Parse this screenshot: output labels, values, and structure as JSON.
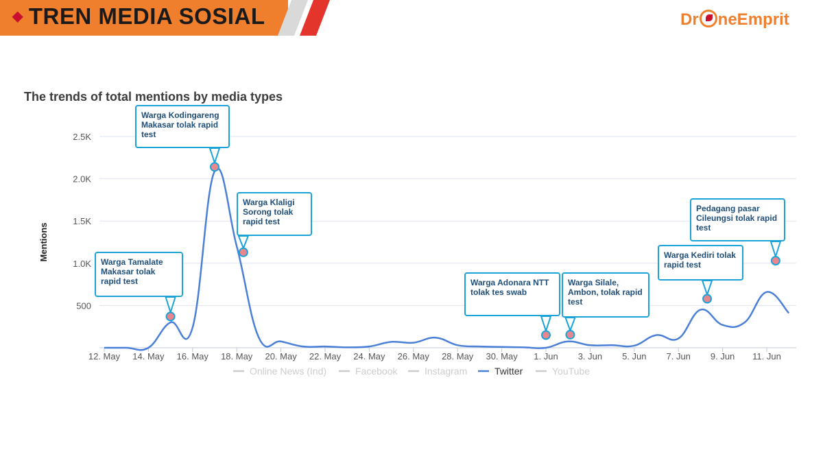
{
  "header": {
    "title": "TREN MEDIA SOSIAL"
  },
  "logo": {
    "part1": "Dr",
    "part2": "neEmprit"
  },
  "chart_data": {
    "type": "line",
    "title": "The trends of total mentions by media types",
    "ylabel": "Mentions",
    "ylim": [
      0,
      2500
    ],
    "yticks": [
      {
        "value": 500,
        "label": "500"
      },
      {
        "value": 1000,
        "label": "1.0K"
      },
      {
        "value": 1500,
        "label": "1.5K"
      },
      {
        "value": 2000,
        "label": "2.0K"
      },
      {
        "value": 2500,
        "label": "2.5K"
      }
    ],
    "xticks": [
      {
        "day": 0,
        "label": "12. May"
      },
      {
        "day": 2,
        "label": "14. May"
      },
      {
        "day": 4,
        "label": "16. May"
      },
      {
        "day": 6,
        "label": "18. May"
      },
      {
        "day": 8,
        "label": "20. May"
      },
      {
        "day": 10,
        "label": "22. May"
      },
      {
        "day": 12,
        "label": "24. May"
      },
      {
        "day": 14,
        "label": "26. May"
      },
      {
        "day": 16,
        "label": "28. May"
      },
      {
        "day": 18,
        "label": "30. May"
      },
      {
        "day": 20,
        "label": "1. Jun"
      },
      {
        "day": 22,
        "label": "3. Jun"
      },
      {
        "day": 24,
        "label": "5. Jun"
      },
      {
        "day": 26,
        "label": "7. Jun"
      },
      {
        "day": 28,
        "label": "9. Jun"
      },
      {
        "day": 30,
        "label": "11. Jun"
      }
    ],
    "series": [
      {
        "name": "Twitter",
        "color": "#4a7fd8",
        "x": [
          "12. May",
          "13. May",
          "14. May",
          "15. May",
          "16. May",
          "17. May",
          "18. May",
          "19. May",
          "20. May",
          "21. May",
          "22. May",
          "23. May",
          "24. May",
          "25. May",
          "26. May",
          "27. May",
          "28. May",
          "29. May",
          "30. May",
          "31. May",
          "1. Jun",
          "2. Jun",
          "3. Jun",
          "4. Jun",
          "5. Jun",
          "6. Jun",
          "7. Jun",
          "8. Jun",
          "9. Jun",
          "10. Jun",
          "11. Jun",
          "12. Jun"
        ],
        "day": [
          0,
          1,
          2,
          3,
          4,
          5,
          6,
          7,
          8,
          9,
          10,
          11,
          12,
          13,
          14,
          15,
          16,
          17,
          18,
          19,
          20,
          21,
          22,
          23,
          24,
          25,
          26,
          27,
          28,
          29,
          30,
          31
        ],
        "values": [
          0,
          0,
          0,
          300,
          240,
          2090,
          1200,
          120,
          75,
          15,
          15,
          5,
          15,
          70,
          60,
          120,
          30,
          15,
          10,
          5,
          0,
          75,
          30,
          30,
          25,
          150,
          110,
          450,
          270,
          300,
          660,
          410
        ]
      }
    ],
    "legend": [
      {
        "name": "Online News (Ind)",
        "active": false
      },
      {
        "name": "Facebook",
        "active": false
      },
      {
        "name": "Instagram",
        "active": false
      },
      {
        "name": "Twitter",
        "active": true
      },
      {
        "name": "YouTube",
        "active": false
      }
    ],
    "legend_position": "bottom",
    "grid": true,
    "annotations": [
      {
        "day": 3.0,
        "value": 370,
        "text": "Warga Tamalate Makasar tolak rapid test"
      },
      {
        "day": 5.0,
        "value": 2140,
        "text": "Warga Kodingareng Makasar tolak rapid test"
      },
      {
        "day": 6.3,
        "value": 1130,
        "text": "Warga Klaligi Sorong tolak rapid test"
      },
      {
        "day": 20.0,
        "value": 150,
        "text": "Warga Adonara NTT tolak tes swab"
      },
      {
        "day": 21.1,
        "value": 155,
        "text": "Warga Silale, Ambon, tolak rapid test"
      },
      {
        "day": 27.3,
        "value": 580,
        "text": "Warga Kediri tolak rapid test"
      },
      {
        "day": 30.4,
        "value": 1030,
        "text": "Pedagang pasar Cileungsi tolak rapid test"
      }
    ]
  },
  "colors": {
    "accent": "#f07f2d",
    "callout_border": "#1aa3d9",
    "grid": "#dde3ef",
    "marker": "#e8888e"
  }
}
